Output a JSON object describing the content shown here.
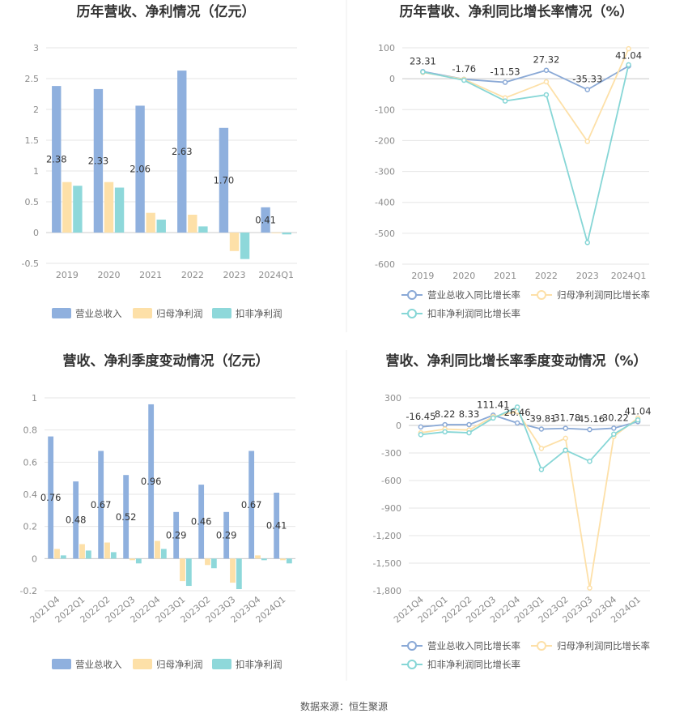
{
  "source": "数据来源：恒生聚源",
  "legend_bar": [
    "营业总收入",
    "归母净利润",
    "扣非净利润"
  ],
  "legend_line": [
    "营业总收入同比增长率",
    "归母净利润同比增长率",
    "扣非净利润同比增长率"
  ],
  "colors": {
    "revenue": "#8fb0de",
    "net": "#fde0a8",
    "deducted": "#8ed8da",
    "line_revenue": "#8aa9d6",
    "line_net": "#fde0a8",
    "line_deducted": "#86d6d6"
  },
  "chart_data": [
    {
      "type": "bar",
      "title": "历年营收、净利情况（亿元）",
      "categories": [
        "2019",
        "2020",
        "2021",
        "2022",
        "2023",
        "2024Q1"
      ],
      "ylim": [
        -0.5,
        3
      ],
      "yticks": [
        "3",
        "2.5",
        "2",
        "1.5",
        "1",
        "0.5",
        "0",
        "-0.5"
      ],
      "series": [
        {
          "name": "营业总收入",
          "values": [
            2.38,
            2.33,
            2.06,
            2.63,
            1.7,
            0.41
          ],
          "labels": [
            "2.38",
            "2.33",
            "2.06",
            "2.63",
            "1.70",
            "0.41"
          ]
        },
        {
          "name": "归母净利润",
          "values": [
            0.82,
            0.82,
            0.32,
            0.29,
            -0.3,
            -0.01
          ]
        },
        {
          "name": "扣非净利润",
          "values": [
            0.76,
            0.73,
            0.21,
            0.1,
            -0.43,
            -0.03
          ]
        }
      ],
      "legend": "bottom"
    },
    {
      "type": "line",
      "title": "历年营收、净利同比增长率情况（%）",
      "categories": [
        "2019",
        "2020",
        "2021",
        "2022",
        "2023",
        "2024Q1"
      ],
      "ylim": [
        -600,
        100
      ],
      "yticks": [
        "100",
        "0",
        "-100",
        "-200",
        "-300",
        "-400",
        "-500",
        "-600"
      ],
      "series": [
        {
          "name": "营业总收入同比增长率",
          "values": [
            23.31,
            -1.76,
            -11.53,
            27.32,
            -35.33,
            41.04
          ],
          "labels": [
            "23.31",
            "-1.76",
            "-11.53",
            "27.32",
            "-35.33",
            "41.04"
          ]
        },
        {
          "name": "归母净利润同比增长率",
          "values": [
            20,
            -2,
            -62,
            -10,
            -203,
            97
          ]
        },
        {
          "name": "扣非净利润同比增长率",
          "values": [
            22,
            -5,
            -72,
            -52,
            -530,
            45
          ]
        }
      ],
      "legend": "bottom"
    },
    {
      "type": "bar",
      "title": "营收、净利季度变动情况（亿元）",
      "categories": [
        "2021Q4",
        "2022Q1",
        "2022Q2",
        "2022Q3",
        "2022Q4",
        "2023Q1",
        "2023Q2",
        "2023Q3",
        "2023Q4",
        "2024Q1"
      ],
      "ylim": [
        -0.2,
        1
      ],
      "yticks": [
        "1",
        "0.8",
        "0.6",
        "0.4",
        "0.2",
        "0",
        "-0.2"
      ],
      "series": [
        {
          "name": "营业总收入",
          "values": [
            0.76,
            0.48,
            0.67,
            0.52,
            0.96,
            0.29,
            0.46,
            0.29,
            0.67,
            0.41
          ],
          "labels": [
            "0.76",
            "0.48",
            "0.67",
            "0.52",
            "0.96",
            "0.29",
            "0.46",
            "0.29",
            "0.67",
            "0.41"
          ]
        },
        {
          "name": "归母净利润",
          "values": [
            0.06,
            0.09,
            0.1,
            -0.01,
            0.11,
            -0.14,
            -0.04,
            -0.15,
            0.02,
            -0.01
          ]
        },
        {
          "name": "扣非净利润",
          "values": [
            0.02,
            0.05,
            0.04,
            -0.03,
            0.06,
            -0.17,
            -0.06,
            -0.19,
            -0.01,
            -0.03
          ]
        }
      ],
      "legend": "bottom"
    },
    {
      "type": "line",
      "title": "营收、净利同比增长率季度变动情况（%）",
      "categories": [
        "2021Q4",
        "2022Q1",
        "2022Q2",
        "2022Q3",
        "2022Q4",
        "2023Q1",
        "2023Q2",
        "2023Q3",
        "2023Q4",
        "2024Q1"
      ],
      "ylim": [
        -1800,
        300
      ],
      "yticks": [
        "300",
        "0",
        "-300",
        "-600",
        "-900",
        "-1,200",
        "-1,500",
        "-1,800"
      ],
      "series": [
        {
          "name": "营业总收入同比增长率",
          "values": [
            -16.45,
            8.22,
            8.33,
            111.41,
            26.46,
            -39.81,
            -31.78,
            -45.16,
            -30.22,
            41.04
          ],
          "labels": [
            "-16.45",
            "8.22",
            "8.33",
            "111.41",
            "26.46",
            "-39.81",
            "-31.78",
            "-45.16",
            "-30.22",
            "41.04"
          ]
        },
        {
          "name": "归母净利润同比增长率",
          "values": [
            -80,
            -40,
            -50,
            95,
            150,
            -250,
            -140,
            -1770,
            -120,
            80
          ]
        },
        {
          "name": "扣非净利润同比增长率",
          "values": [
            -100,
            -70,
            -80,
            80,
            200,
            -480,
            -270,
            -390,
            -95,
            60
          ]
        }
      ],
      "legend": "bottom"
    }
  ]
}
